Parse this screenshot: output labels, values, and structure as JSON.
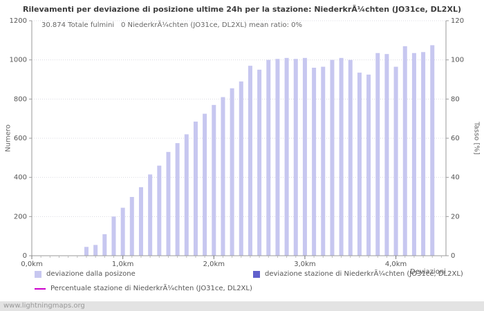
{
  "title": "Rilevamenti per deviazione di posizione ultime 24h per la stazione: NiederkrÃ¼chten (JO31ce, DL2XL)",
  "stats": {
    "total": "30.874 Totale fulmini",
    "station": "0 NiederkrÃ¼chten (JO31ce, DL2XL)",
    "mean_ratio": "mean ratio: 0%"
  },
  "axes": {
    "y_left_label": "Numero",
    "y_right_label": "Tasso [%]",
    "x_label": "Deviazioni"
  },
  "legend": [
    {
      "label": "deviazione dalla posizone",
      "color": "#c7c7f0",
      "type": "square"
    },
    {
      "label": "deviazione stazione di NiederkrÃ¼chten (JO31ce, DL2XL)",
      "color": "#6060cc",
      "type": "square"
    },
    {
      "label": "Percentuale stazione di NiederkrÃ¼chten (JO31ce, DL2XL)",
      "color": "#cc00cc",
      "type": "line"
    }
  ],
  "footer": "www.lightningmaps.org",
  "colors": {
    "bar": "#c7c7f0",
    "station_bar": "#6060cc",
    "ratio_line": "#cc00cc",
    "grid": "#d9d9e0",
    "axis": "#999999",
    "text": "#555555",
    "footer_bg": "#e3e3e3"
  },
  "chart_data": {
    "type": "bar",
    "title": "Rilevamenti per deviazione di posizione ultime 24h per la stazione: NiederkrÃ¼chten (JO31ce, DL2XL)",
    "xlabel": "Deviazioni",
    "ylabel_left": "Numero",
    "ylabel_right": "Tasso [%]",
    "legend_position": "bottom",
    "grid": true,
    "bar_color": "#c7c7f0",
    "xlim": [
      0,
      4.55
    ],
    "ylim": [
      0,
      1200
    ],
    "y2lim": [
      0,
      120
    ],
    "y_ticks": [
      0,
      200,
      400,
      600,
      800,
      1000,
      1200
    ],
    "y2_ticks": [
      0,
      20,
      40,
      60,
      80,
      100,
      120
    ],
    "x_ticks": [
      {
        "v": 0,
        "label": "0,0km"
      },
      {
        "v": 1,
        "label": "1,0km"
      },
      {
        "v": 2,
        "label": "2,0km"
      },
      {
        "v": 3,
        "label": "3,0km"
      },
      {
        "v": 4,
        "label": "4,0km"
      }
    ],
    "series_name": "deviazione dalla posizone",
    "x_km": [
      0.6,
      0.7,
      0.8,
      0.9,
      1.0,
      1.1,
      1.2,
      1.3,
      1.4,
      1.5,
      1.6,
      1.7,
      1.8,
      1.9,
      2.0,
      2.1,
      2.2,
      2.3,
      2.4,
      2.5,
      2.6,
      2.7,
      2.8,
      2.9,
      3.0,
      3.1,
      3.2,
      3.3,
      3.4,
      3.5,
      3.6,
      3.7,
      3.8,
      3.9,
      4.0,
      4.1,
      4.2,
      4.3,
      4.4
    ],
    "values": [
      45,
      55,
      110,
      200,
      245,
      300,
      350,
      415,
      460,
      530,
      575,
      620,
      685,
      725,
      770,
      810,
      855,
      890,
      970,
      950,
      1000,
      1005,
      1010,
      1005,
      1010,
      960,
      965,
      1000,
      1010,
      1000,
      935,
      925,
      1035,
      1030,
      965,
      1070,
      1035,
      1040,
      1075
    ],
    "station_series": {
      "name": "deviazione stazione di NiederkrÃ¼chten (JO31ce, DL2XL)",
      "values": []
    },
    "ratio_series": {
      "name": "Percentuale stazione di NiederkrÃ¼chten (JO31ce, DL2XL)",
      "mean_ratio_percent": 0
    }
  }
}
